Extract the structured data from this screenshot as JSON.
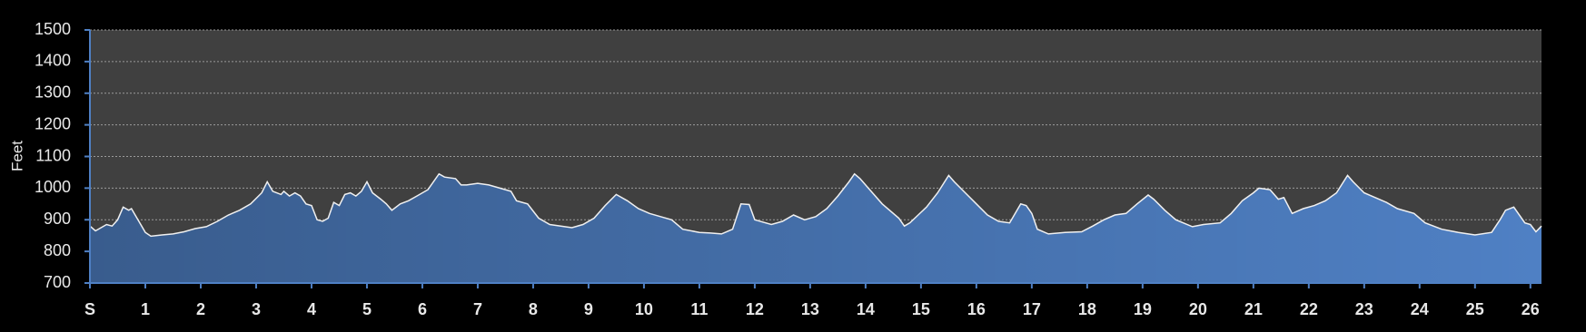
{
  "chart_data": {
    "type": "area",
    "y_label": "Feet",
    "color": "#4f80c4",
    "x": [
      0,
      0.1,
      0.3,
      0.4,
      0.5,
      0.6,
      0.7,
      0.75,
      0.9,
      1.0,
      1.1,
      1.3,
      1.5,
      1.7,
      1.9,
      2.1,
      2.3,
      2.5,
      2.7,
      2.9,
      3.1,
      3.2,
      3.3,
      3.45,
      3.5,
      3.6,
      3.7,
      3.8,
      3.9,
      4.0,
      4.1,
      4.2,
      4.3,
      4.4,
      4.5,
      4.6,
      4.7,
      4.8,
      4.9,
      5.0,
      5.1,
      5.25,
      5.35,
      5.45,
      5.6,
      5.75,
      5.9,
      6.1,
      6.3,
      6.4,
      6.6,
      6.7,
      6.8,
      7.0,
      7.2,
      7.4,
      7.6,
      7.7,
      7.9,
      8.1,
      8.3,
      8.5,
      8.7,
      8.9,
      9.1,
      9.3,
      9.5,
      9.7,
      9.9,
      10.1,
      10.3,
      10.5,
      10.7,
      11.0,
      11.2,
      11.4,
      11.6,
      11.75,
      11.9,
      12.0,
      12.3,
      12.5,
      12.7,
      12.9,
      13.1,
      13.3,
      13.5,
      13.7,
      13.8,
      13.9,
      14.1,
      14.3,
      14.6,
      14.7,
      14.8,
      14.95,
      15.1,
      15.3,
      15.5,
      15.6,
      15.8,
      16.0,
      16.2,
      16.4,
      16.6,
      16.8,
      16.9,
      17.0,
      17.1,
      17.3,
      17.6,
      17.9,
      18.1,
      18.3,
      18.5,
      18.7,
      18.9,
      19.1,
      19.2,
      19.4,
      19.6,
      19.9,
      20.1,
      20.4,
      20.6,
      20.8,
      21.0,
      21.1,
      21.3,
      21.45,
      21.55,
      21.7,
      21.9,
      22.1,
      22.3,
      22.5,
      22.7,
      22.8,
      23.0,
      23.2,
      23.4,
      23.6,
      23.9,
      24.1,
      24.4,
      24.7,
      25.0,
      25.3,
      25.45,
      25.55,
      25.7,
      25.9,
      26.0,
      26.1,
      26.2
    ],
    "y": [
      880,
      865,
      885,
      880,
      900,
      940,
      930,
      935,
      890,
      860,
      848,
      852,
      855,
      862,
      872,
      878,
      895,
      915,
      930,
      950,
      985,
      1020,
      990,
      980,
      990,
      975,
      985,
      975,
      950,
      945,
      900,
      895,
      905,
      955,
      945,
      980,
      985,
      975,
      990,
      1020,
      985,
      965,
      950,
      930,
      950,
      960,
      975,
      995,
      1045,
      1035,
      1030,
      1010,
      1010,
      1015,
      1010,
      1000,
      990,
      960,
      950,
      905,
      885,
      880,
      875,
      885,
      905,
      945,
      980,
      960,
      935,
      920,
      910,
      900,
      870,
      860,
      858,
      855,
      870,
      950,
      948,
      900,
      885,
      895,
      915,
      900,
      910,
      935,
      975,
      1020,
      1045,
      1030,
      990,
      950,
      905,
      880,
      890,
      915,
      940,
      985,
      1040,
      1020,
      985,
      950,
      915,
      895,
      890,
      950,
      945,
      920,
      870,
      855,
      860,
      862,
      880,
      900,
      915,
      920,
      950,
      978,
      965,
      930,
      900,
      878,
      885,
      890,
      920,
      960,
      985,
      1000,
      995,
      965,
      970,
      920,
      935,
      945,
      960,
      985,
      1040,
      1020,
      985,
      970,
      955,
      935,
      920,
      890,
      870,
      860,
      852,
      860,
      900,
      930,
      940,
      890,
      885,
      862,
      880
    ],
    "xlim": [
      0,
      26.2
    ],
    "xticks": [
      {
        "value": 0,
        "label": "S"
      },
      1,
      2,
      3,
      4,
      5,
      6,
      7,
      8,
      9,
      10,
      11,
      12,
      13,
      14,
      15,
      16,
      17,
      18,
      19,
      20,
      21,
      22,
      23,
      24,
      25,
      26
    ],
    "ylim": [
      700,
      1500
    ],
    "yticks": [
      700,
      800,
      900,
      1000,
      1100,
      1200,
      1300,
      1400,
      1500
    ],
    "grid": true
  }
}
